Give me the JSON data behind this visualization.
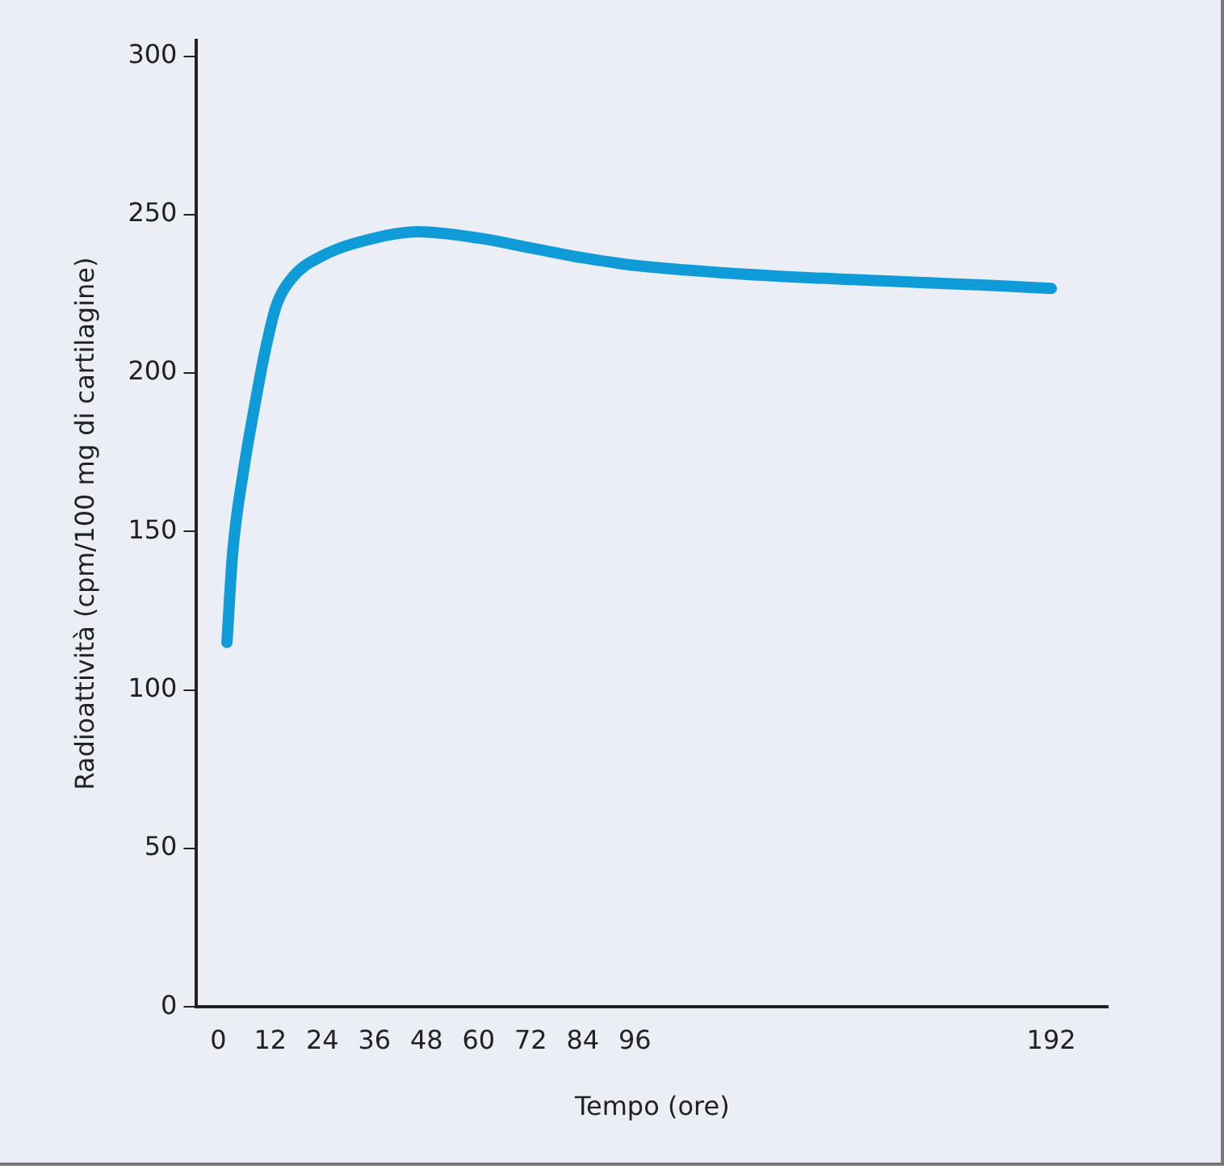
{
  "chart_data": {
    "type": "line",
    "xlabel": "Tempo (ore)",
    "ylabel": "Radioattività (cpm/100 mg di cartilagine)",
    "x": [
      2,
      3.3,
      5.8,
      8.3,
      10.8,
      13.3,
      17,
      24,
      36,
      46,
      60,
      72,
      84,
      96,
      192
    ],
    "series": [
      {
        "color": "#0f9ad8",
        "values": [
          115,
          143,
          169,
          189,
          207,
          221,
          230,
          237,
          242.6,
          244.6,
          242.6,
          239.5,
          236.4,
          234,
          226.7
        ]
      }
    ],
    "xlim": [
      -5,
      205
    ],
    "xticks": [
      0,
      12,
      24,
      36,
      48,
      60,
      72,
      84,
      96,
      192
    ],
    "ylim": [
      0,
      305
    ],
    "yticks": [
      0,
      50,
      100,
      150,
      200,
      250,
      300
    ],
    "grid": false,
    "legend": false,
    "marker": "none",
    "line_style": "solid"
  }
}
